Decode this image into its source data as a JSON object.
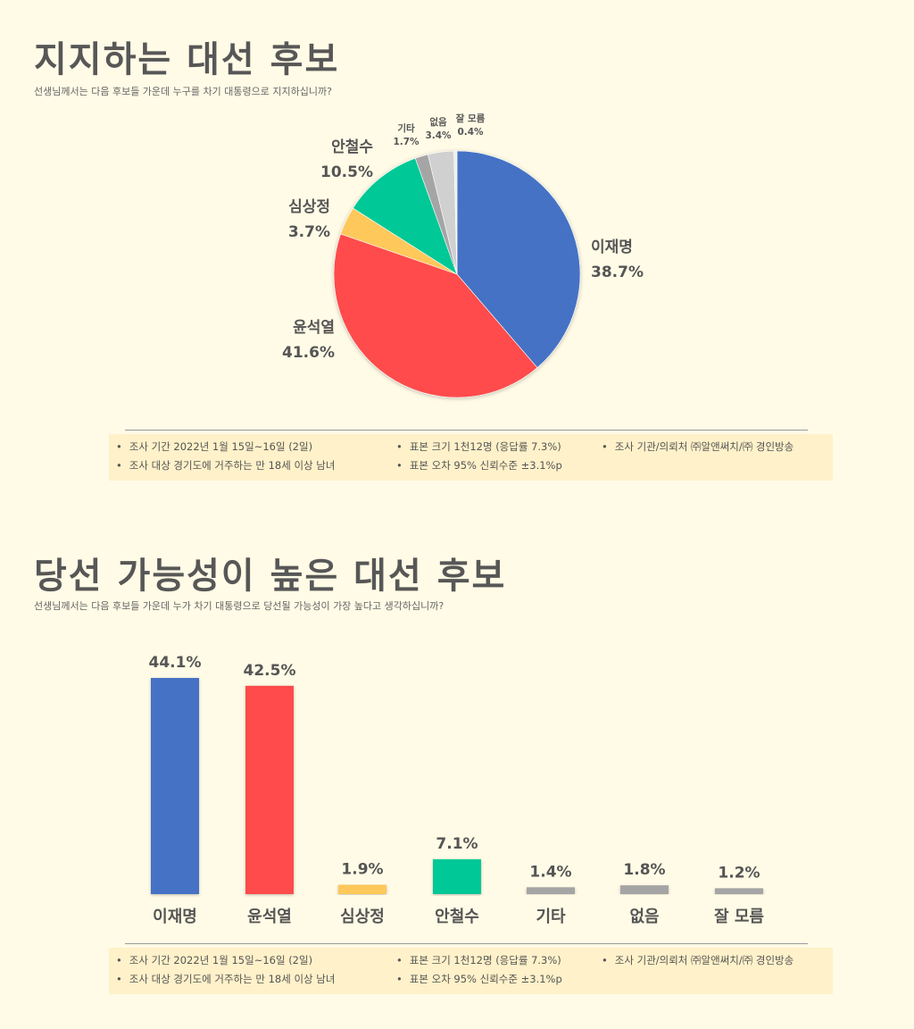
{
  "sections": [
    {
      "title": "지지하는 대선 후보",
      "subtitle": "선생님께서는 다음 후보들 가운데 누구를 차기 대통령으로 지지하십니까?",
      "notes": [
        "조사 기간 2022년 1월 15일~16일 (2일)",
        "표본 크기 1천12명 (응답률 7.3%)",
        "조사 기관/의뢰처 ㈜알앤써치/㈜ 경인방송",
        "조사 대상 경기도에 거주하는 만 18세 이상 남녀",
        "표본 오차 95% 신뢰수준 ±3.1%p"
      ]
    },
    {
      "title": "당선 가능성이 높은 대선 후보",
      "subtitle": "선생님께서는 다음 후보들 가운데 누가 차기 대통령으로 당선될 가능성이 가장 높다고 생각하십니까?",
      "notes": [
        "조사 기간 2022년 1월 15일~16일 (2일)",
        "표본 크기 1천12명 (응답률 7.3%)",
        "조사 기관/의뢰처 ㈜알앤써치/㈜ 경인방송",
        "조사 대상 경기도에 거주하는 만 18세 이상 남녀",
        "표본 오차 95% 신뢰수준 ±3.1%p"
      ]
    }
  ],
  "chart_data": [
    {
      "type": "pie",
      "title": "지지하는 대선 후보",
      "categories": [
        "이재명",
        "윤석열",
        "심상정",
        "안철수",
        "기타",
        "없음",
        "잘 모름"
      ],
      "values": [
        38.7,
        41.6,
        3.7,
        10.5,
        1.7,
        3.4,
        0.4
      ],
      "labels": [
        "38.7%",
        "41.6%",
        "3.7%",
        "10.5%",
        "1.7%",
        "3.4%",
        "0.4%"
      ],
      "colors": [
        "#4472c4",
        "#ff4b4b",
        "#ffc85a",
        "#00c896",
        "#a5a5a5",
        "#d0d0d0",
        "#eeeeee"
      ],
      "start": "12 o'clock",
      "direction": "clockwise"
    },
    {
      "type": "bar",
      "title": "당선 가능성이 높은 대선 후보",
      "categories": [
        "이재명",
        "윤석열",
        "심상정",
        "안철수",
        "기타",
        "없음",
        "잘 모름"
      ],
      "values": [
        44.1,
        42.5,
        1.9,
        7.1,
        1.4,
        1.8,
        1.2
      ],
      "labels": [
        "44.1%",
        "42.5%",
        "1.9%",
        "7.1%",
        "1.4%",
        "1.8%",
        "1.2%"
      ],
      "colors": [
        "#4472c4",
        "#ff4b4b",
        "#ffc85a",
        "#00c896",
        "#a5a5a5",
        "#a5a5a5",
        "#a5a5a5"
      ],
      "ylim": [
        0,
        44.1
      ],
      "grid": false
    }
  ]
}
